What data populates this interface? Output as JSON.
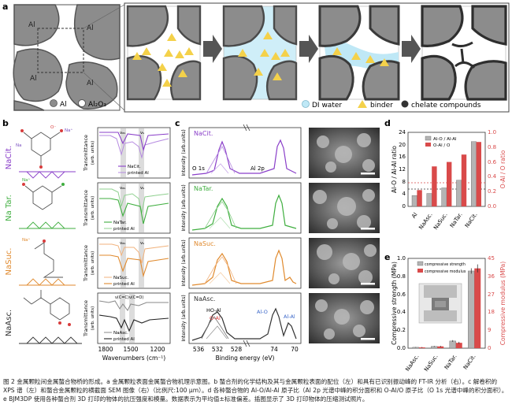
{
  "panel_a": {
    "letter": "a",
    "particle_label": "Al",
    "legend": {
      "al": "Al",
      "al2o3": "Al₂O₃",
      "water": "DI water",
      "binder": "binder",
      "chelate": "chelate compounds"
    }
  },
  "panel_b": {
    "letter": "b",
    "compounds": [
      "NaCit.",
      "Na Tar.",
      "NaSuc.",
      "NaAsc."
    ],
    "ylabel": "Transmittance",
    "yunit": "(arb. units)",
    "xlabel": "Wavenumbers (cm⁻¹)",
    "xticks": [
      "1800",
      "1500",
      "1200"
    ],
    "legends": [
      [
        "NaCit.",
        "printed Al"
      ],
      [
        "NaTar.",
        "printed Al"
      ],
      [
        "NaSuc.",
        "printed Al"
      ],
      [
        "NaAsc.",
        "printed Al"
      ]
    ],
    "peaks": [
      "νₐₛ",
      "νₛ"
    ],
    "asc_peaks": [
      "ν(C=C)",
      "ν(C=O)"
    ],
    "na_labels": [
      "Na⁺",
      "O⁻",
      "Na"
    ]
  },
  "panel_c": {
    "letter": "c",
    "labels": [
      "NaCit.",
      "NaTar.",
      "NaSuc.",
      "NaAsc."
    ],
    "ylabel": "Intensity (arb.units)",
    "xlabel": "Binding energy (eV)",
    "xticks": [
      "536",
      "532",
      "528",
      "74",
      "70"
    ],
    "region_o": "O 1s",
    "region_al": "Al 2p",
    "ann": {
      "hoal": "HO-Al",
      "oal": "O-Al",
      "alo": "Al-O",
      "alal": "Al-Al"
    }
  },
  "panel_d": {
    "letter": "d",
    "legend": [
      "Al-O / Al-Al",
      "O-Al / O"
    ],
    "ylabel_left": "Al-O / Al-Al ratio",
    "ylabel_right": "O-Al / O ratio",
    "yticks_left": [
      "0",
      "4",
      "8",
      "12",
      "16",
      "20",
      "24"
    ],
    "yticks_right": [
      "0.0",
      "0.2",
      "0.4",
      "0.6",
      "0.8",
      "1.0"
    ],
    "categories": [
      "Al",
      "NaAsc.",
      "NaSuc.",
      "NaTar.",
      "NaCit."
    ]
  },
  "panel_e": {
    "letter": "e",
    "legend": [
      "compressive strength",
      "compressive modulus"
    ],
    "ylabel_left": "Compressive strength (MPa)",
    "ylabel_right": "Compressive modulus (MPa)",
    "yticks_left": [
      "0.0",
      "0.2",
      "0.4",
      "0.6",
      "0.8",
      "1.0"
    ],
    "yticks_right": [
      "0",
      "9",
      "18",
      "27",
      "36",
      "45"
    ],
    "categories": [
      "NaAsc.",
      "NaSuc.",
      "NaTar.",
      "NaCit."
    ]
  },
  "chart_data": [
    {
      "type": "bar",
      "panel": "d",
      "categories": [
        "Al",
        "NaAsc.",
        "NaSuc.",
        "NaTar.",
        "NaCit."
      ],
      "series": [
        {
          "name": "Al-O / Al-Al",
          "axis": "left",
          "values": [
            3.5,
            4.2,
            6.0,
            8.5,
            21.0
          ]
        },
        {
          "name": "O-Al / O",
          "axis": "right",
          "values": [
            0.22,
            0.54,
            0.6,
            0.7,
            0.87
          ]
        }
      ],
      "ylim_left": [
        0,
        24
      ],
      "ylim_right": [
        0,
        1.0
      ],
      "xlabel": "",
      "ylabel": "Al-O / Al-Al ratio",
      "colors": [
        "#b4b4b4",
        "#d94a4a"
      ]
    },
    {
      "type": "bar",
      "panel": "e",
      "categories": [
        "NaAsc.",
        "NaSuc.",
        "NaTar.",
        "NaCit."
      ],
      "series": [
        {
          "name": "compressive strength",
          "axis": "left",
          "values": [
            0.01,
            0.02,
            0.08,
            0.86
          ]
        },
        {
          "name": "compressive modulus",
          "axis": "right",
          "values": [
            0.4,
            0.9,
            2.7,
            40
          ]
        }
      ],
      "errors": [
        [
          0.003,
          0.005,
          0.01,
          0.03
        ],
        [
          0.2,
          0.3,
          0.5,
          2.0
        ]
      ],
      "ylim_left": [
        0,
        1.0
      ],
      "ylim_right": [
        0,
        45
      ],
      "xlabel": "",
      "ylabel": "Compressive strength (MPa)",
      "colors": [
        "#b4b4b4",
        "#d94a4a"
      ]
    }
  ],
  "caption": "图 2 金属颗粒间金属螯合物桥的形成。a 金属颗粒表面金属螯合物机理示意图。b 螯合剂的化学结构及其与金属颗粒表面的配位（左）和具有已识别振动峰的 FT-IR 分析（右）。c 解卷积的 XPS 谱（左）和螯合金属颗粒的横截面 SEM 图像（右）（比例尺:100 μm）。d 各种螯合物的 Al-O/Al-Al 原子比（Al 2p 光谱中峰的积分面积和 O-Al/O 原子比（O 1s 光谱中峰的积分面积）。e BJM3DP 使用各种螯合剂 3D 打印的物体的抗压强度和模量。数据表示为平均值±标准偏差。插图显示了 3D 打印物体的压缩测试照片。"
}
